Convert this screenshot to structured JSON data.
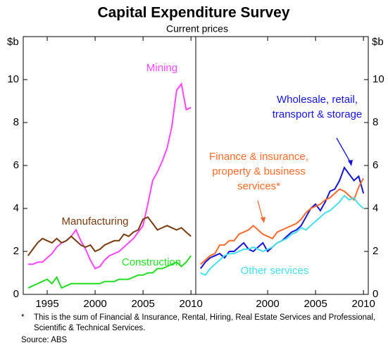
{
  "title": "Capital Expenditure Survey",
  "subtitle": "Current prices",
  "footnote": {
    "marker": "*",
    "text": "This is the sum of Financial & Insurance, Rental, Hiring, Real Estate Services and Professional, Scientific & Technical Services."
  },
  "source": "Source: ABS",
  "chart_data": [
    {
      "type": "line",
      "y_label": "$b",
      "x": [
        1993,
        1993.5,
        1994,
        1994.5,
        1995,
        1995.5,
        1996,
        1996.5,
        1997,
        1997.5,
        1998,
        1998.5,
        1999,
        1999.5,
        2000,
        2000.5,
        2001,
        2001.5,
        2002,
        2002.5,
        2003,
        2003.5,
        2004,
        2004.5,
        2005,
        2005.5,
        2006,
        2006.5,
        2007,
        2007.5,
        2008,
        2008.5,
        2009,
        2009.5,
        2010
      ],
      "xlim": [
        1992.5,
        2010.5
      ],
      "xticks": [
        1995,
        2000,
        2005,
        2010
      ],
      "ylim": [
        0,
        12
      ],
      "yticks": [
        0,
        2,
        4,
        6,
        8,
        10
      ],
      "series": [
        {
          "name": "Mining",
          "color": "#ff44ff",
          "values": [
            1.4,
            1.4,
            1.5,
            1.5,
            1.7,
            1.9,
            2.2,
            2.4,
            2.5,
            2.7,
            3.0,
            2.5,
            2.1,
            1.6,
            1.2,
            1.3,
            1.6,
            1.8,
            1.9,
            2.0,
            2.2,
            2.4,
            2.6,
            2.9,
            3.2,
            4.2,
            5.3,
            5.7,
            6.2,
            6.8,
            7.8,
            9.5,
            9.8,
            8.6,
            8.7
          ]
        },
        {
          "name": "Manufacturing",
          "color": "#7a3b10",
          "values": [
            1.8,
            2.1,
            2.4,
            2.6,
            2.5,
            2.4,
            2.6,
            2.4,
            2.5,
            2.7,
            2.5,
            2.3,
            2.2,
            2.3,
            2.0,
            2.1,
            2.3,
            2.4,
            2.5,
            2.5,
            2.8,
            2.7,
            2.9,
            3.0,
            3.5,
            3.6,
            3.3,
            3.0,
            3.1,
            3.2,
            3.1,
            3.0,
            3.1,
            2.9,
            2.7
          ]
        },
        {
          "name": "Construction",
          "color": "#22dd22",
          "values": [
            0.3,
            0.4,
            0.5,
            0.6,
            0.7,
            0.5,
            0.8,
            0.3,
            0.4,
            0.5,
            0.5,
            0.5,
            0.5,
            0.5,
            0.5,
            0.5,
            0.6,
            0.6,
            0.6,
            0.7,
            0.7,
            0.7,
            0.8,
            0.9,
            0.9,
            1.0,
            1.0,
            1.2,
            1.2,
            1.3,
            1.4,
            1.5,
            1.3,
            1.5,
            1.8
          ]
        }
      ]
    },
    {
      "type": "line",
      "y_label": "$b",
      "x": [
        1993,
        1993.5,
        1994,
        1994.5,
        1995,
        1995.5,
        1996,
        1996.5,
        1997,
        1997.5,
        1998,
        1998.5,
        1999,
        1999.5,
        2000,
        2000.5,
        2001,
        2001.5,
        2002,
        2002.5,
        2003,
        2003.5,
        2004,
        2004.5,
        2005,
        2005.5,
        2006,
        2006.5,
        2007,
        2007.5,
        2008,
        2008.5,
        2009,
        2009.5,
        2010
      ],
      "xlim": [
        1992.5,
        2010.5
      ],
      "xticks": [
        2000,
        2005,
        2010
      ],
      "ylim": [
        0,
        12
      ],
      "yticks": [
        0,
        2,
        4,
        6,
        8,
        10
      ],
      "series": [
        {
          "name": "Wholesale, retail, transport & storage",
          "color": "#1414dd",
          "values": [
            1.2,
            1.5,
            1.7,
            1.8,
            1.9,
            1.7,
            2.0,
            2.0,
            2.2,
            2.4,
            2.1,
            2.0,
            2.2,
            2.4,
            2.0,
            2.2,
            2.4,
            2.5,
            2.7,
            2.9,
            3.0,
            3.2,
            3.6,
            4.0,
            4.2,
            3.9,
            4.3,
            4.8,
            4.9,
            5.3,
            5.9,
            5.6,
            5.3,
            5.5,
            4.7
          ]
        },
        {
          "name": "Finance & insurance, property & business services*",
          "color": "#ff6a2a",
          "values": [
            1.4,
            1.6,
            1.8,
            1.9,
            2.3,
            2.3,
            2.5,
            2.5,
            2.8,
            2.9,
            3.0,
            3.2,
            3.0,
            2.8,
            2.7,
            2.6,
            2.9,
            3.0,
            3.1,
            3.2,
            3.3,
            3.5,
            3.8,
            4.0,
            4.1,
            4.2,
            4.4,
            4.5,
            4.7,
            4.9,
            4.8,
            4.6,
            4.4,
            5.0,
            5.4
          ]
        },
        {
          "name": "Other services",
          "color": "#44e0f0",
          "values": [
            1.0,
            0.9,
            1.2,
            1.4,
            1.6,
            1.8,
            1.9,
            1.9,
            2.0,
            2.1,
            2.1,
            2.2,
            2.1,
            2.0,
            2.1,
            2.2,
            2.4,
            2.5,
            2.6,
            2.8,
            2.9,
            3.1,
            3.0,
            3.2,
            3.4,
            3.6,
            3.8,
            3.9,
            4.1,
            4.3,
            4.6,
            4.4,
            4.5,
            4.2,
            4.0
          ]
        }
      ]
    }
  ]
}
